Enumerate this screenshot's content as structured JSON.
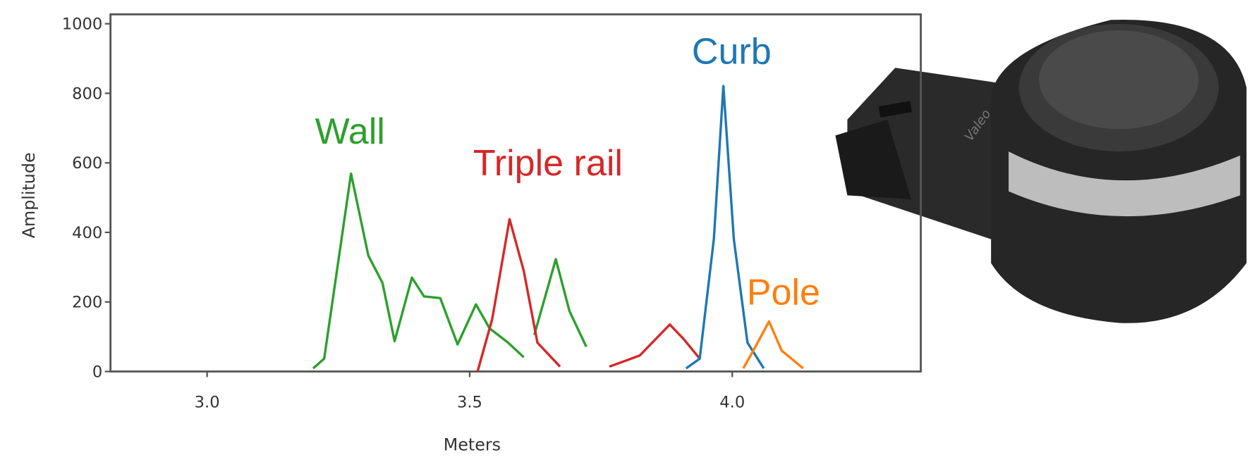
{
  "chart_data": {
    "type": "line",
    "xlabel": "Meters",
    "ylabel": "Amplitude",
    "xlim": [
      2.816,
      4.359
    ],
    "ylim": [
      0,
      1027
    ],
    "xticks": [
      {
        "value": 3,
        "label": "3.0"
      },
      {
        "value": 3.5,
        "label": "3.5"
      },
      {
        "value": 4,
        "label": "4.0"
      }
    ],
    "yticks": [
      0,
      200,
      400,
      600,
      800,
      1000
    ],
    "series": [
      {
        "name": "Wall",
        "color": "#2ca02c",
        "x": [
          3.202,
          3.223,
          3.274,
          3.307,
          3.334,
          3.357,
          3.39,
          3.413,
          3.444,
          3.477,
          3.512,
          3.538,
          3.573,
          3.603,
          3.613,
          3.623,
          3.664,
          3.69,
          3.722
        ],
        "values": [
          9,
          37,
          569,
          333,
          255,
          87,
          270,
          216,
          211,
          78,
          193,
          124,
          83,
          41,
          null,
          105,
          323,
          174,
          71
        ]
      },
      {
        "name": "Triple rail",
        "color": "#d62728",
        "x": [
          3.515,
          3.543,
          3.576,
          3.603,
          3.629,
          3.672,
          3.72,
          3.766,
          3.824,
          3.881,
          3.907,
          3.938
        ],
        "values": [
          0,
          151,
          438,
          289,
          83,
          14,
          null,
          14,
          46,
          135,
          94,
          37
        ]
      },
      {
        "name": "Curb",
        "color": "#1f77b4",
        "x": [
          3.912,
          3.938,
          3.965,
          3.983,
          4.003,
          4.029,
          4.06
        ],
        "values": [
          9,
          37,
          381,
          821,
          381,
          83,
          9
        ]
      },
      {
        "name": "Pole",
        "color": "#ff7f0e",
        "x": [
          4.021,
          4.044,
          4.07,
          4.094,
          4.135
        ],
        "values": [
          9,
          71,
          144,
          60,
          9
        ]
      }
    ]
  }
}
